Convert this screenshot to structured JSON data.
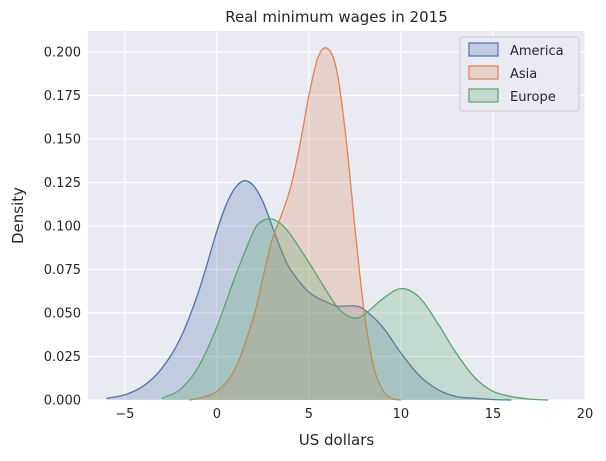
{
  "chart_data": {
    "type": "area",
    "chart_kind": "kde",
    "title": "Real minimum wages in 2015",
    "xlabel": "US dollars",
    "ylabel": "Density",
    "xlim": [
      -7,
      20
    ],
    "ylim": [
      0,
      0.212
    ],
    "xticks": [
      "−5",
      "0",
      "5",
      "10",
      "15",
      "20"
    ],
    "xtick_values": [
      -5,
      0,
      5,
      10,
      15,
      20
    ],
    "yticks": [
      "0.000",
      "0.025",
      "0.050",
      "0.075",
      "0.100",
      "0.125",
      "0.150",
      "0.175",
      "0.200"
    ],
    "ytick_values": [
      0,
      0.025,
      0.05,
      0.075,
      0.1,
      0.125,
      0.15,
      0.175,
      0.2
    ],
    "grid": true,
    "legend_position": "top-right",
    "series": [
      {
        "name": "America",
        "color": "#4c72b0",
        "x": [
          -6,
          -5,
          -4,
          -3,
          -2,
          -1,
          0,
          0.5,
          1,
          1.5,
          2,
          2.5,
          3,
          3.5,
          4,
          5,
          6,
          6.5,
          7,
          7.5,
          8,
          9,
          10,
          11,
          12,
          13,
          14,
          15,
          16
        ],
        "y": [
          0.001,
          0.003,
          0.008,
          0.018,
          0.035,
          0.062,
          0.097,
          0.112,
          0.122,
          0.126,
          0.123,
          0.114,
          0.1,
          0.086,
          0.075,
          0.062,
          0.056,
          0.054,
          0.054,
          0.054,
          0.052,
          0.042,
          0.027,
          0.014,
          0.006,
          0.002,
          0.001,
          0.0003,
          0
        ]
      },
      {
        "name": "Asia",
        "color": "#dd8452",
        "x": [
          -1.5,
          -1,
          0,
          1,
          2,
          2.5,
          3,
          3.5,
          4,
          4.5,
          5,
          5.5,
          6,
          6.5,
          7,
          7.5,
          8,
          8.5,
          9,
          9.5,
          10
        ],
        "y": [
          0,
          0.001,
          0.005,
          0.018,
          0.048,
          0.07,
          0.092,
          0.106,
          0.122,
          0.146,
          0.175,
          0.197,
          0.202,
          0.19,
          0.152,
          0.099,
          0.051,
          0.02,
          0.006,
          0.001,
          0
        ]
      },
      {
        "name": "Europe",
        "color": "#55a868",
        "x": [
          -3,
          -2,
          -1,
          0,
          1,
          2,
          2.5,
          3,
          3.5,
          4,
          5,
          6,
          6.5,
          7,
          7.5,
          8,
          9,
          10,
          11,
          12,
          13,
          14,
          15,
          16,
          17,
          18
        ],
        "y": [
          0.001,
          0.006,
          0.019,
          0.042,
          0.071,
          0.097,
          0.103,
          0.104,
          0.101,
          0.095,
          0.079,
          0.062,
          0.054,
          0.049,
          0.047,
          0.049,
          0.058,
          0.064,
          0.059,
          0.044,
          0.027,
          0.013,
          0.005,
          0.002,
          0.0005,
          0
        ]
      }
    ]
  }
}
